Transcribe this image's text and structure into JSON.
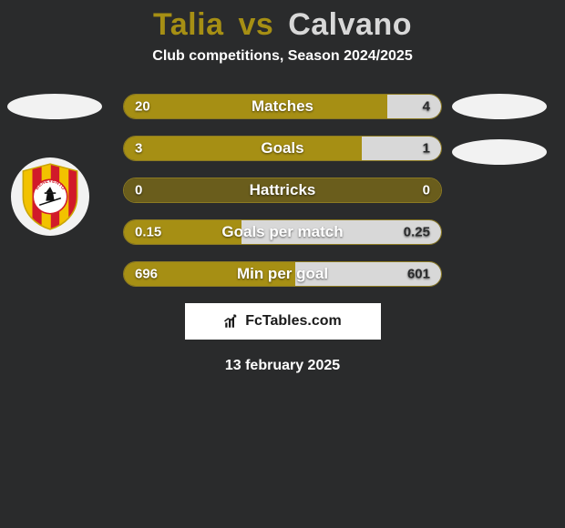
{
  "title": {
    "left_name": "Talia",
    "right_name": "Calvano",
    "join": "vs",
    "left_color": "#a68f14",
    "right_color": "#d8d8d8",
    "fontsize": 34
  },
  "subtitle": {
    "text": "Club competitions, Season 2024/2025",
    "fontsize": 16
  },
  "stats": {
    "left_color": "#a68f14",
    "right_color": "#d8d8d8",
    "neutral_color": "#6a5d1c",
    "label_fontsize": 17,
    "value_fontsize": 15,
    "rows": [
      {
        "label": "Matches",
        "left": "20",
        "right": "4",
        "left_pct": 83,
        "right_pct": 17
      },
      {
        "label": "Goals",
        "left": "3",
        "right": "1",
        "left_pct": 75,
        "right_pct": 25
      },
      {
        "label": "Hattricks",
        "left": "0",
        "right": "0",
        "left_pct": 0,
        "right_pct": 0
      },
      {
        "label": "Goals per match",
        "left": "0.15",
        "right": "0.25",
        "left_pct": 37,
        "right_pct": 63
      },
      {
        "label": "Min per goal",
        "left": "696",
        "right": "601",
        "left_pct": 54,
        "right_pct": 46
      }
    ]
  },
  "badge": {
    "outer_bg": "#f2f2f2",
    "stripes": [
      "#d11a2a",
      "#f2c200"
    ],
    "center_bg": "#ffffff",
    "center_text": "BENEVENTO",
    "center_text_color": "#d11a2a",
    "witch_color": "#111111"
  },
  "brand": {
    "text": "FcTables.com",
    "fontsize": 16
  },
  "date": {
    "text": "13 february 2025",
    "fontsize": 16
  }
}
